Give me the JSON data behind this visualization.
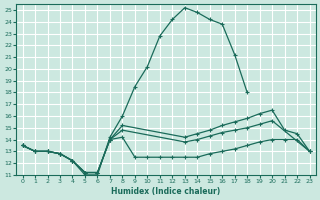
{
  "xlabel": "Humidex (Indice chaleur)",
  "bg_color": "#cce8e0",
  "grid_color": "#ffffff",
  "line_color": "#1a6b5a",
  "xlim": [
    -0.5,
    23.5
  ],
  "ylim": [
    11,
    25.5
  ],
  "xticks": [
    0,
    1,
    2,
    3,
    4,
    5,
    6,
    7,
    8,
    9,
    10,
    11,
    12,
    13,
    14,
    15,
    16,
    17,
    18,
    19,
    20,
    21,
    22,
    23
  ],
  "yticks": [
    11,
    12,
    13,
    14,
    15,
    16,
    17,
    18,
    19,
    20,
    21,
    22,
    23,
    24,
    25
  ],
  "series1_x": [
    0,
    1,
    2,
    3,
    4,
    5,
    6,
    7,
    8,
    9,
    10,
    11,
    12,
    13,
    14,
    15,
    16,
    17,
    18
  ],
  "series1_y": [
    13.5,
    13.0,
    13.0,
    12.8,
    12.2,
    11.0,
    11.0,
    14.2,
    16.0,
    18.5,
    20.2,
    22.8,
    24.2,
    25.2,
    24.8,
    24.2,
    23.8,
    21.2,
    18.0
  ],
  "series2_x": [
    0,
    1,
    2,
    3,
    4,
    5,
    6,
    7,
    8,
    13,
    14,
    15,
    16,
    17,
    18,
    19,
    20,
    21,
    22,
    23
  ],
  "series2_y": [
    13.5,
    13.0,
    13.0,
    12.8,
    12.2,
    11.2,
    11.2,
    14.0,
    15.2,
    14.2,
    14.5,
    14.8,
    15.2,
    15.5,
    15.8,
    16.2,
    16.5,
    14.8,
    14.5,
    13.0
  ],
  "series3_x": [
    0,
    1,
    2,
    3,
    4,
    5,
    6,
    7,
    8,
    13,
    14,
    15,
    16,
    17,
    18,
    19,
    20,
    23
  ],
  "series3_y": [
    13.5,
    13.0,
    13.0,
    12.8,
    12.2,
    11.2,
    11.2,
    14.0,
    14.8,
    13.8,
    14.0,
    14.3,
    14.6,
    14.8,
    15.0,
    15.3,
    15.6,
    13.0
  ],
  "series4_x": [
    0,
    1,
    2,
    3,
    4,
    5,
    6,
    7,
    8,
    9,
    10,
    11,
    12,
    13,
    14,
    15,
    16,
    17,
    18,
    19,
    20,
    21,
    22,
    23
  ],
  "series4_y": [
    13.5,
    13.0,
    13.0,
    12.8,
    12.2,
    11.2,
    11.2,
    14.0,
    14.2,
    12.5,
    12.5,
    12.5,
    12.5,
    12.5,
    12.5,
    12.8,
    13.0,
    13.2,
    13.5,
    13.8,
    14.0,
    14.0,
    14.0,
    13.0
  ]
}
